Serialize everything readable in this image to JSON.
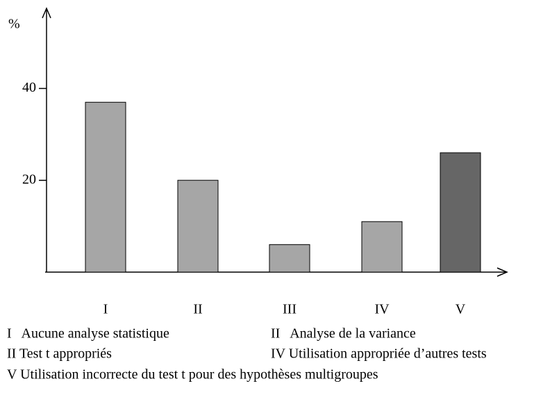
{
  "chart_data": {
    "type": "bar",
    "y_label": "%",
    "categories": [
      "I",
      "II",
      "III",
      "IV",
      "V"
    ],
    "values": [
      37,
      20,
      6,
      11,
      26
    ],
    "colors": [
      "#a6a6a6",
      "#a6a6a6",
      "#a6a6a6",
      "#a6a6a6",
      "#666666"
    ],
    "ylim": [
      0,
      57
    ],
    "yticks": [
      20,
      40
    ],
    "grid": false,
    "legend": [
      "I   Aucune analyse statistique",
      "II   Analyse de la variance",
      "II Test t appropriés",
      "IV Utilisation appropriée d’autres tests",
      "V Utilisation incorrecte du test t pour des hypothèses multigroupes"
    ]
  }
}
